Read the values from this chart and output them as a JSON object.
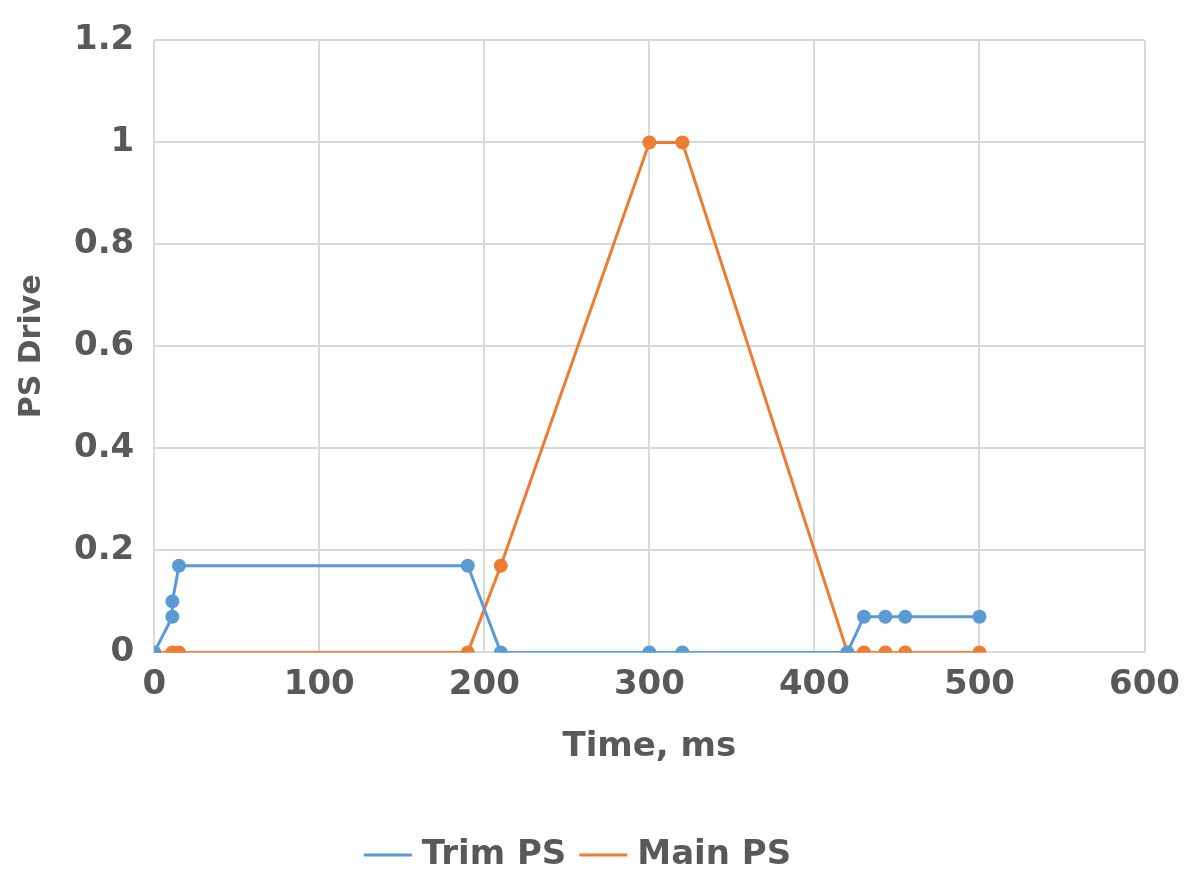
{
  "chart_data": {
    "type": "line",
    "xlabel": "Time, ms",
    "ylabel": "PS Drive",
    "series": [
      {
        "name": "Trim PS",
        "color": "#5b9bd5",
        "x": [
          0,
          11,
          11,
          15,
          190,
          210,
          300,
          320,
          420,
          430,
          443,
          455,
          500
        ],
        "values": [
          0,
          0.07,
          0.1,
          0.17,
          0.17,
          0,
          0,
          0,
          0,
          0.07,
          0.07,
          0.07,
          0.07
        ]
      },
      {
        "name": "Main PS",
        "color": "#ed7d31",
        "x": [
          0,
          11,
          15,
          190,
          210,
          300,
          320,
          420,
          430,
          443,
          455,
          500
        ],
        "values": [
          0,
          0,
          0,
          0,
          0.17,
          1,
          1,
          0,
          0,
          0,
          0,
          0
        ]
      }
    ],
    "xlim": [
      0,
      600
    ],
    "xticks": [
      0,
      100,
      200,
      300,
      400,
      500,
      600
    ],
    "ylim": [
      0,
      1.2
    ],
    "yticks": [
      0,
      0.2,
      0.4,
      0.6,
      0.8,
      1,
      1.2
    ],
    "grid": true,
    "legend": "bottom",
    "marker": "circle",
    "line_style": "solid"
  }
}
